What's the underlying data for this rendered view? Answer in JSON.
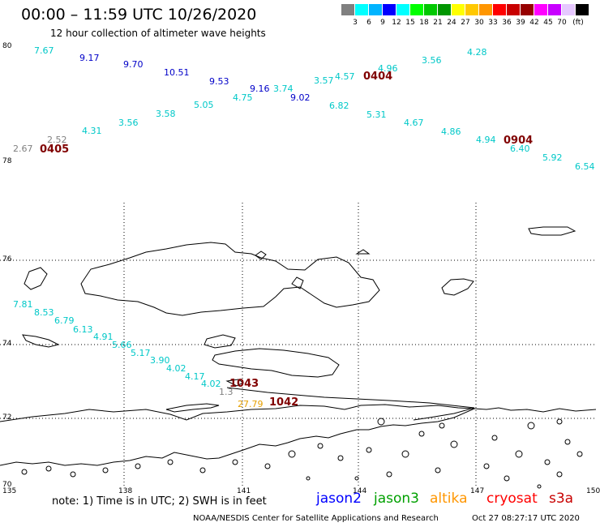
{
  "title": "00:00 – 11:59 UTC 10/26/2020",
  "subtitle": "12 hour collection of altimeter wave heights",
  "legend": {
    "unit": "(ft)",
    "labels": [
      "3",
      "6",
      "9",
      "12",
      "15",
      "18",
      "21",
      "24",
      "27",
      "30",
      "33",
      "36",
      "39",
      "42",
      "45",
      "70"
    ],
    "colors": [
      "#808080",
      "#00ffff",
      "#00b4ff",
      "#0000ff",
      "#00ffff",
      "#00ff00",
      "#00c800",
      "#009600",
      "#ffff00",
      "#ffc800",
      "#ff9600",
      "#ff0000",
      "#c80000",
      "#960000",
      "#ff00ff",
      "#c800ff",
      "#e6c8ff",
      "#000000"
    ]
  },
  "axes": {
    "lon_labels": [
      "135",
      "138",
      "141",
      "144",
      "147",
      "150"
    ],
    "lat_labels": [
      "80",
      "78",
      "76",
      "74",
      "72",
      "70"
    ]
  },
  "wave_heights": [
    {
      "v": "7.67",
      "c": "#00c8c8"
    },
    {
      "v": "9.17",
      "c": "#0000c8"
    },
    {
      "v": "9.70",
      "c": "#0000c8"
    },
    {
      "v": "10.51",
      "c": "#0000c8"
    },
    {
      "v": "9.53",
      "c": "#0000c8"
    },
    {
      "v": "9.16",
      "c": "#0000c8"
    },
    {
      "v": "3.74",
      "c": "#00c8c8"
    },
    {
      "v": "9.02",
      "c": "#0000c8"
    },
    {
      "v": "4.75",
      "c": "#00c8c8"
    },
    {
      "v": "5.05",
      "c": "#00c8c8"
    },
    {
      "v": "3.58",
      "c": "#00c8c8"
    },
    {
      "v": "3.56",
      "c": "#00c8c8"
    },
    {
      "v": "4.31",
      "c": "#00c8c8"
    },
    {
      "v": "2.52",
      "c": "#808080"
    },
    {
      "v": "2.67",
      "c": "#808080"
    },
    {
      "v": "3.57",
      "c": "#00c8c8"
    },
    {
      "v": "4.57",
      "c": "#00c8c8"
    },
    {
      "v": "4.96",
      "c": "#00c8c8"
    },
    {
      "v": "3.56",
      "c": "#00c8c8"
    },
    {
      "v": "4.28",
      "c": "#00c8c8"
    },
    {
      "v": "6.82",
      "c": "#00c8c8"
    },
    {
      "v": "5.31",
      "c": "#00c8c8"
    },
    {
      "v": "4.67",
      "c": "#00c8c8"
    },
    {
      "v": "4.86",
      "c": "#00c8c8"
    },
    {
      "v": "4.94",
      "c": "#00c8c8"
    },
    {
      "v": "6.40",
      "c": "#00c8c8"
    },
    {
      "v": "5.92",
      "c": "#00c8c8"
    },
    {
      "v": "6.54",
      "c": "#00c8c8"
    },
    {
      "v": "7.81",
      "c": "#00c8c8"
    },
    {
      "v": "8.53",
      "c": "#00c8c8"
    },
    {
      "v": "6.79",
      "c": "#00c8c8"
    },
    {
      "v": "6.13",
      "c": "#00c8c8"
    },
    {
      "v": "4.91",
      "c": "#00c8c8"
    },
    {
      "v": "5.66",
      "c": "#00c8c8"
    },
    {
      "v": "5.17",
      "c": "#00c8c8"
    },
    {
      "v": "3.90",
      "c": "#00c8c8"
    },
    {
      "v": "4.02",
      "c": "#00c8c8"
    },
    {
      "v": "4.17",
      "c": "#00c8c8"
    },
    {
      "v": "4.02",
      "c": "#00c8c8"
    },
    {
      "v": "1.3",
      "c": "#808080"
    },
    {
      "v": "27.79",
      "c": "#e6a000"
    }
  ],
  "time_stamps": [
    "0404",
    "0405",
    "0904",
    "1043",
    "1042"
  ],
  "note": "note:  1) Time is in UTC; 2) SWH is in feet",
  "satellites": [
    {
      "name": "jason2",
      "color": "#0000ff"
    },
    {
      "name": "jason3",
      "color": "#00a000"
    },
    {
      "name": "altika",
      "color": "#ff9600"
    },
    {
      "name": "cryosat",
      "color": "#ff0000"
    },
    {
      "name": "s3a",
      "color": "#c80000"
    }
  ],
  "credit": "NOAA/NESDIS Center for Satellite Applications and Research",
  "generated": "Oct 27 08:27:17 UTC 2020"
}
